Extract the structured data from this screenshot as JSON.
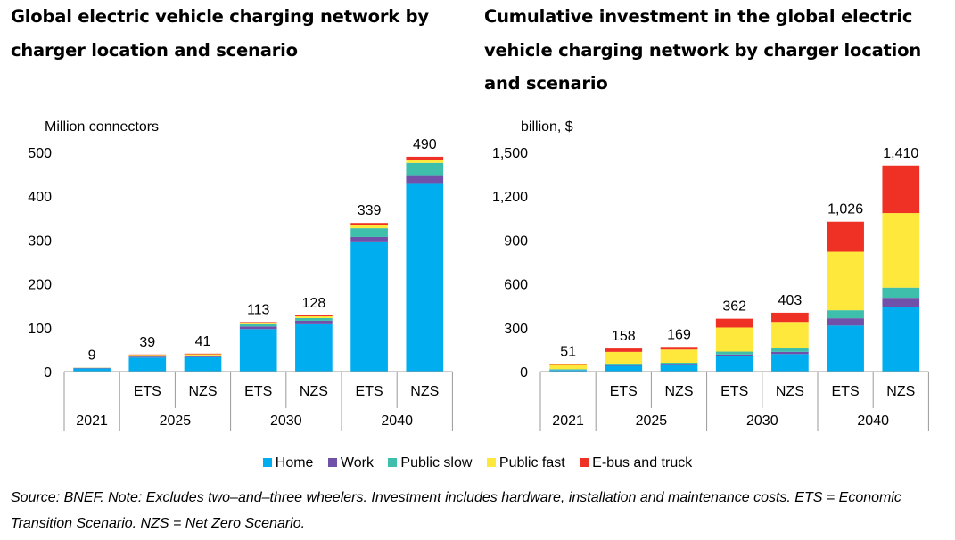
{
  "titles": {
    "left": "Global electric vehicle charging network by charger location and scenario",
    "right": "Cumulative investment in the global electric vehicle charging network by charger location and scenario"
  },
  "legend": [
    {
      "label": "Home",
      "color": "#00aeef"
    },
    {
      "label": "Work",
      "color": "#7050a8"
    },
    {
      "label": "Public slow",
      "color": "#3ebfac"
    },
    {
      "label": "Public fast",
      "color": "#ffe83c"
    },
    {
      "label": "E-bus and truck",
      "color": "#ee3124"
    }
  ],
  "source": "Source: BNEF. Note: Excludes two–and–three wheelers. Investment includes hardware, installation and maintenance costs. ETS = Economic Transition Scenario. NZS = Net Zero Scenario.",
  "chart_data": [
    {
      "type": "bar",
      "stacked": true,
      "ylabel": "Million connectors",
      "ylim": [
        0,
        500
      ],
      "yticks": [
        0,
        100,
        200,
        300,
        400,
        500
      ],
      "ytick_labels": [
        "0",
        "100",
        "200",
        "300",
        "400",
        "500"
      ],
      "categories": [
        "",
        "ETS",
        "NZS",
        "ETS",
        "NZS",
        "ETS",
        "NZS"
      ],
      "groups": [
        {
          "label": "2021",
          "span": 1
        },
        {
          "label": "2025",
          "span": 2
        },
        {
          "label": "2030",
          "span": 2
        },
        {
          "label": "2040",
          "span": 2
        }
      ],
      "totals": [
        "9",
        "39",
        "41",
        "113",
        "128",
        "339",
        "490"
      ],
      "series": [
        {
          "name": "Home",
          "color": "#00aeef",
          "values": [
            7,
            32,
            33,
            97,
            108,
            295,
            430
          ]
        },
        {
          "name": "Work",
          "color": "#7050a8",
          "values": [
            1,
            2,
            2,
            6,
            8,
            12,
            18
          ]
        },
        {
          "name": "Public slow",
          "color": "#3ebfac",
          "values": [
            0.5,
            2,
            2,
            5,
            6,
            20,
            28
          ]
        },
        {
          "name": "Public fast",
          "color": "#ffe83c",
          "values": [
            0.3,
            2,
            2.5,
            3,
            4,
            7,
            7
          ]
        },
        {
          "name": "E-bus and truck",
          "color": "#ee3124",
          "values": [
            0.2,
            1,
            1.5,
            2,
            2,
            5,
            7
          ]
        }
      ]
    },
    {
      "type": "bar",
      "stacked": true,
      "ylabel": "billion, $",
      "ylim": [
        0,
        1500
      ],
      "yticks": [
        0,
        300,
        600,
        900,
        1200,
        1500
      ],
      "ytick_labels": [
        "0",
        "300",
        "600",
        "900",
        "1,200",
        "1,500"
      ],
      "categories": [
        "",
        "ETS",
        "NZS",
        "ETS",
        "NZS",
        "ETS",
        "NZS"
      ],
      "groups": [
        {
          "label": "2021",
          "span": 1
        },
        {
          "label": "2025",
          "span": 2
        },
        {
          "label": "2030",
          "span": 2
        },
        {
          "label": "2040",
          "span": 2
        }
      ],
      "totals": [
        "51",
        "158",
        "169",
        "362",
        "403",
        "1,026",
        "1,410"
      ],
      "series": [
        {
          "name": "Home",
          "color": "#00aeef",
          "values": [
            10,
            40,
            45,
            105,
            120,
            315,
            445
          ]
        },
        {
          "name": "Work",
          "color": "#7050a8",
          "values": [
            1,
            3,
            4,
            12,
            15,
            50,
            60
          ]
        },
        {
          "name": "Public slow",
          "color": "#3ebfac",
          "values": [
            5,
            12,
            12,
            20,
            25,
            55,
            70
          ]
        },
        {
          "name": "Public fast",
          "color": "#ffe83c",
          "values": [
            30,
            80,
            90,
            165,
            180,
            400,
            510
          ]
        },
        {
          "name": "E-bus and truck",
          "color": "#ee3124",
          "values": [
            5,
            23,
            18,
            60,
            63,
            206,
            325
          ]
        }
      ]
    }
  ]
}
